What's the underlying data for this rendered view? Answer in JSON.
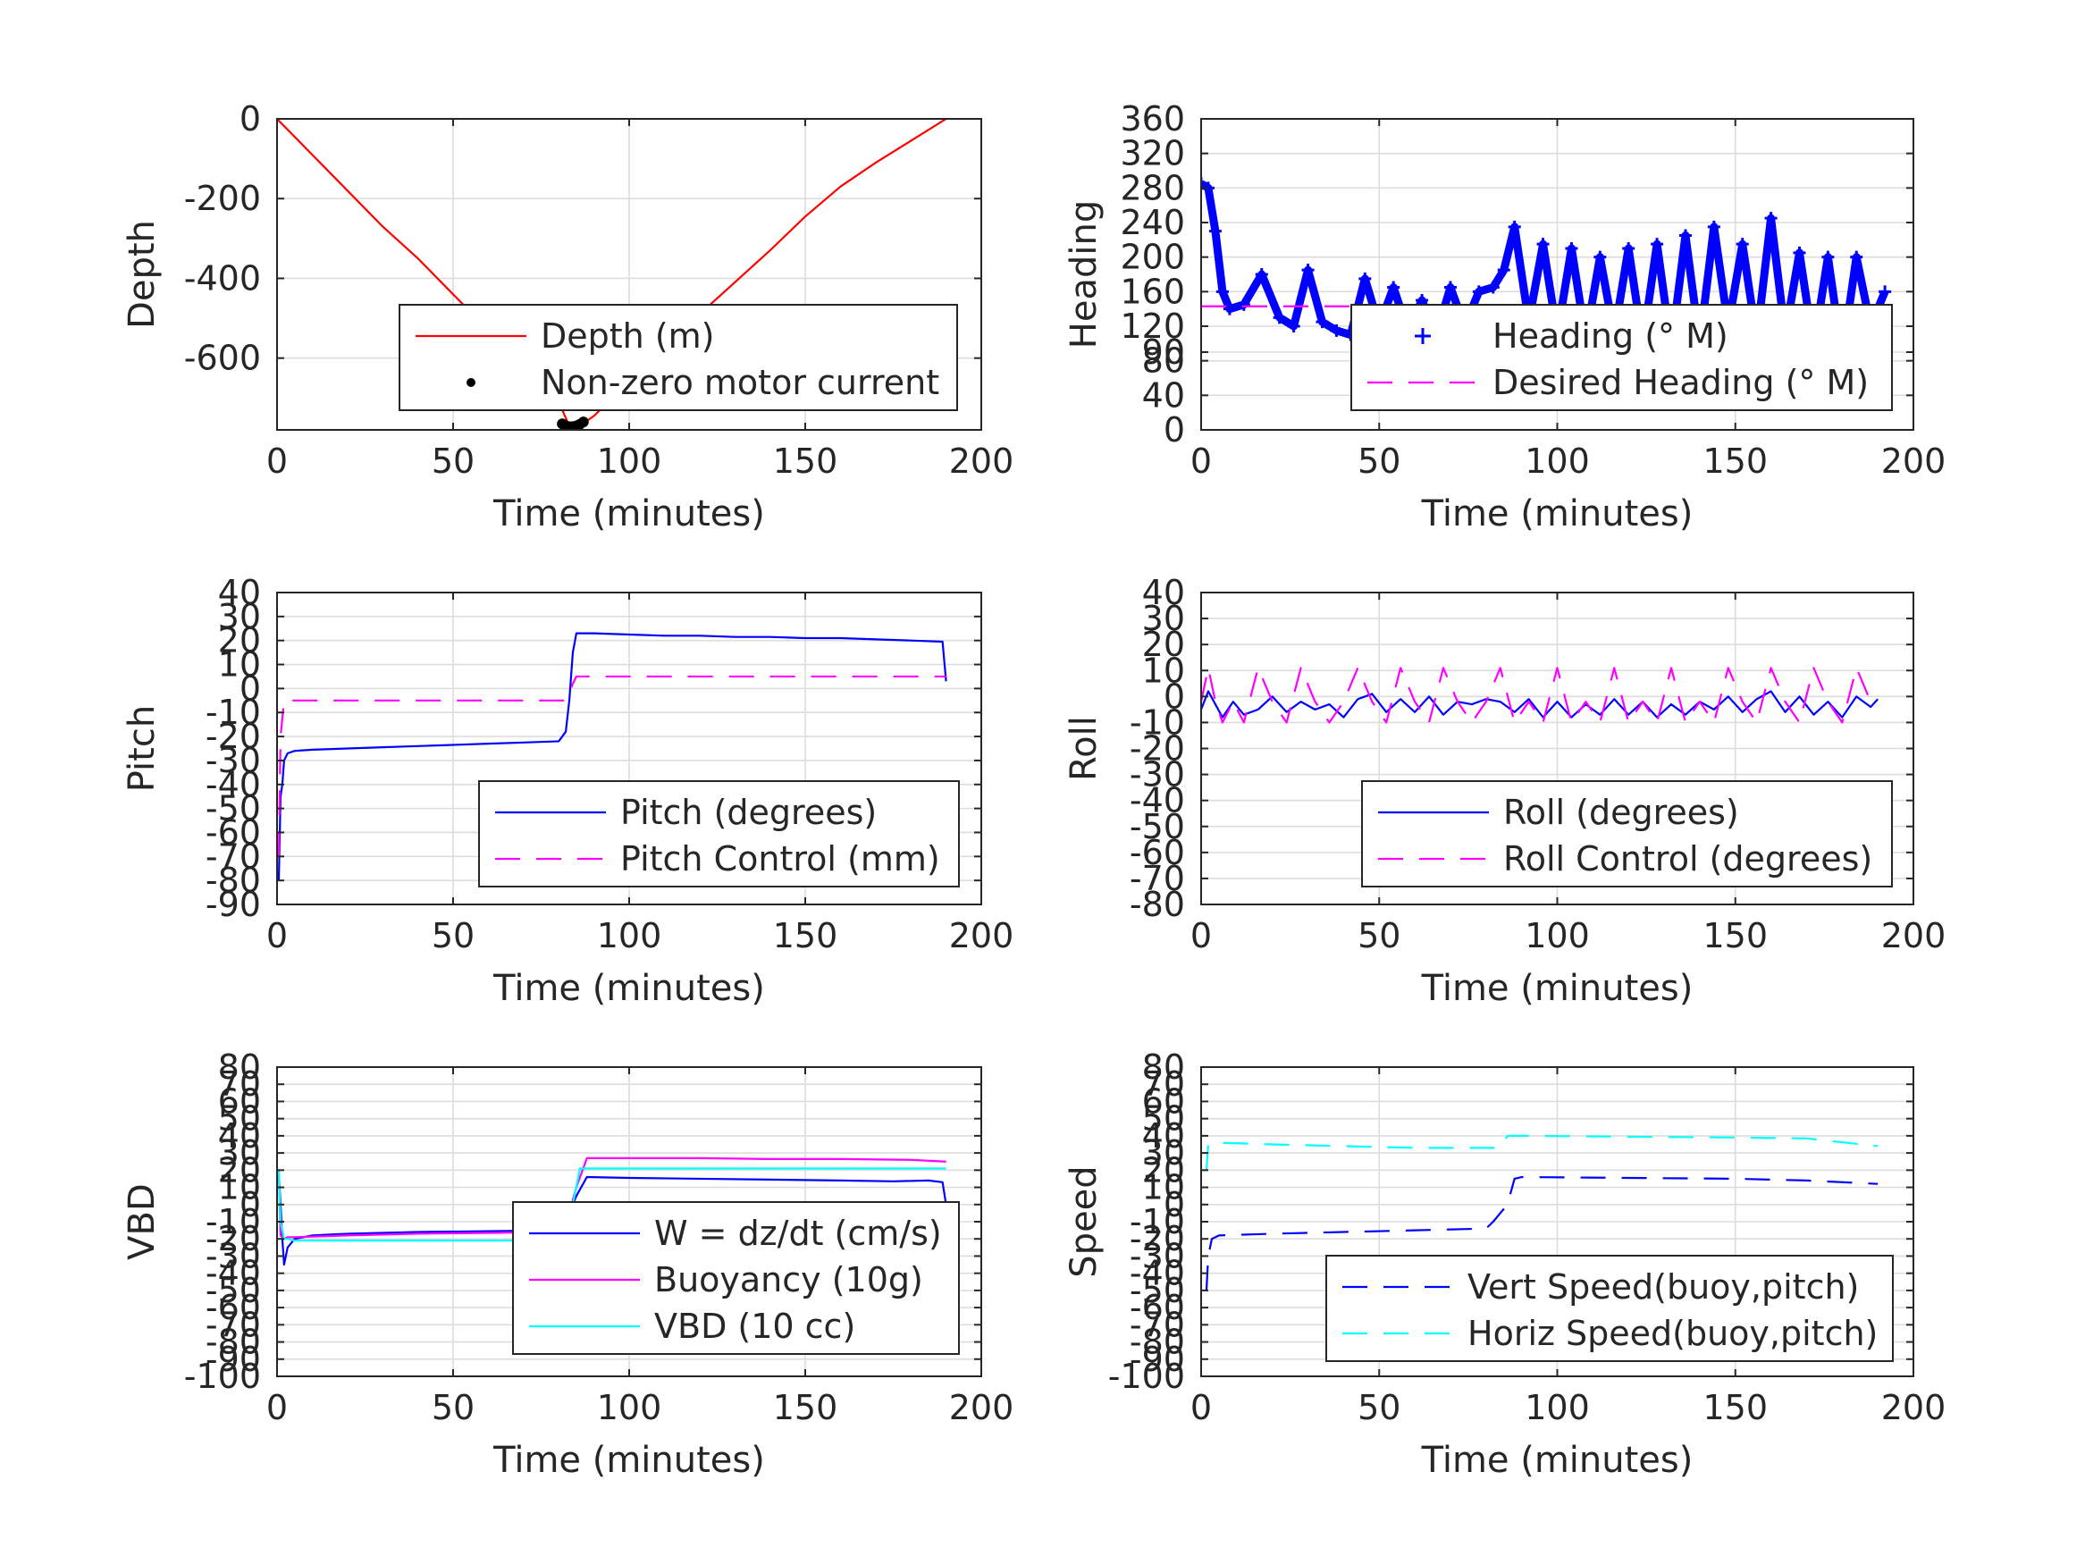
{
  "figure": {
    "xlabel_common": "Time (minutes)"
  },
  "chart_data": [
    {
      "type": "line",
      "id": "depth",
      "ylabel": "Depth",
      "xlabel": "Time (minutes)",
      "xlim": [
        0,
        200
      ],
      "ylim": [
        -780,
        0
      ],
      "xticks": [
        0,
        50,
        100,
        150,
        200
      ],
      "yticks": [
        -600,
        -400,
        -200,
        0
      ],
      "xtick_labels": [
        "0",
        "50",
        "100",
        "150",
        "200"
      ],
      "ytick_labels": [
        "-600",
        "-400",
        "-200",
        "0"
      ],
      "legend_location": "lower-right",
      "series": [
        {
          "name": "Depth (m)",
          "color": "#ff0000",
          "style": "solid",
          "x": [
            0,
            10,
            20,
            30,
            40,
            50,
            60,
            70,
            80,
            83,
            86,
            90,
            100,
            110,
            120,
            130,
            140,
            150,
            160,
            170,
            180,
            190
          ],
          "y": [
            0,
            -90,
            -180,
            -270,
            -350,
            -440,
            -530,
            -620,
            -710,
            -770,
            -770,
            -745,
            -660,
            -575,
            -490,
            -410,
            -330,
            -245,
            -170,
            -110,
            -55,
            0
          ]
        },
        {
          "name": "Non-zero motor current",
          "color": "#000000",
          "style": "dots",
          "x": [
            81,
            82,
            83,
            84,
            85,
            86,
            87
          ],
          "y": [
            -765,
            -770,
            -772,
            -772,
            -770,
            -766,
            -760
          ]
        }
      ]
    },
    {
      "type": "line",
      "id": "heading",
      "ylabel": "Heading",
      "xlabel": "Time (minutes)",
      "xlim": [
        0,
        200
      ],
      "ylim": [
        0,
        360
      ],
      "xticks": [
        0,
        50,
        100,
        150,
        200
      ],
      "yticks": [
        0,
        40,
        80,
        90,
        120,
        160,
        200,
        240,
        280,
        320,
        360
      ],
      "xtick_labels": [
        "0",
        "50",
        "100",
        "150",
        "200"
      ],
      "ytick_labels": [
        "0",
        "40",
        "80",
        "90",
        "120",
        "160",
        "200",
        "240",
        "280",
        "320",
        "360"
      ],
      "legend_location": "lower-right",
      "series": [
        {
          "name": "Heading (° M)",
          "color": "#0000ff",
          "style": "plus-markers",
          "x": [
            0,
            2,
            4,
            6,
            8,
            12,
            17,
            22,
            26,
            30,
            34,
            38,
            42,
            46,
            50,
            54,
            58,
            62,
            66,
            70,
            74,
            78,
            82,
            85,
            88,
            92,
            96,
            100,
            104,
            108,
            112,
            116,
            120,
            124,
            128,
            132,
            136,
            140,
            144,
            148,
            152,
            156,
            160,
            164,
            168,
            172,
            176,
            180,
            184,
            188,
            192
          ],
          "y": [
            285,
            280,
            230,
            160,
            140,
            145,
            180,
            130,
            120,
            185,
            125,
            115,
            110,
            175,
            120,
            165,
            115,
            150,
            110,
            165,
            120,
            160,
            165,
            185,
            235,
            125,
            215,
            110,
            210,
            105,
            200,
            110,
            210,
            100,
            215,
            95,
            225,
            100,
            235,
            120,
            215,
            105,
            245,
            110,
            205,
            95,
            200,
            85,
            200,
            120,
            160
          ]
        },
        {
          "name": "Desired Heading (° M)",
          "color": "#ff00ff",
          "style": "dashed",
          "x": [
            0,
            192
          ],
          "y": [
            143,
            143
          ]
        }
      ]
    },
    {
      "type": "line",
      "id": "pitch",
      "ylabel": "Pitch",
      "xlabel": "Time (minutes)",
      "xlim": [
        0,
        200
      ],
      "ylim": [
        -90,
        40
      ],
      "xticks": [
        0,
        50,
        100,
        150,
        200
      ],
      "yticks": [
        -90,
        -80,
        -70,
        -60,
        -50,
        -40,
        -30,
        -20,
        -10,
        0,
        10,
        20,
        30,
        40
      ],
      "xtick_labels": [
        "0",
        "50",
        "100",
        "150",
        "200"
      ],
      "ytick_labels": [
        "-90",
        "-80",
        "-70",
        "-60",
        "-50",
        "-40",
        "-30",
        "-20",
        "-10",
        "0",
        "10",
        "20",
        "30",
        "40"
      ],
      "legend_location": "lower-right",
      "series": [
        {
          "name": "Pitch (degrees)",
          "color": "#0000ff",
          "style": "solid",
          "x": [
            0.5,
            1,
            1.5,
            2,
            3,
            5,
            10,
            20,
            30,
            40,
            50,
            60,
            70,
            80,
            82,
            83,
            84,
            85,
            90,
            100,
            110,
            120,
            130,
            140,
            150,
            160,
            170,
            180,
            189,
            190
          ],
          "y": [
            -80,
            -45,
            -40,
            -30,
            -27,
            -26,
            -25.5,
            -25,
            -24.5,
            -24,
            -23.5,
            -23,
            -22.5,
            -22,
            -18,
            -5,
            15,
            23,
            23,
            22.5,
            22,
            22,
            21.5,
            21.5,
            21,
            21,
            20.5,
            20,
            19.5,
            3
          ]
        },
        {
          "name": "Pitch Control (mm)",
          "color": "#ff00ff",
          "style": "dashed",
          "x": [
            0.5,
            1,
            2,
            5,
            20,
            40,
            60,
            80,
            82,
            83,
            84,
            85,
            86,
            190
          ],
          "y": [
            -70,
            -20,
            -5,
            -5,
            -5,
            -5,
            -5,
            -5,
            -5,
            -2,
            2,
            5,
            5,
            5
          ]
        }
      ]
    },
    {
      "type": "line",
      "id": "roll",
      "ylabel": "Roll",
      "xlabel": "Time (minutes)",
      "xlim": [
        0,
        200
      ],
      "ylim": [
        -80,
        40
      ],
      "xticks": [
        0,
        50,
        100,
        150,
        200
      ],
      "yticks": [
        -80,
        -70,
        -60,
        -50,
        -40,
        -30,
        -20,
        -10,
        0,
        10,
        20,
        30,
        40
      ],
      "xtick_labels": [
        "0",
        "50",
        "100",
        "150",
        "200"
      ],
      "ytick_labels": [
        "-80",
        "-70",
        "-60",
        "-50",
        "-40",
        "-30",
        "-20",
        "-10",
        "0",
        "10",
        "20",
        "30",
        "40"
      ],
      "legend_location": "lower-right",
      "series": [
        {
          "name": "Roll (degrees)",
          "color": "#0000ff",
          "style": "solid",
          "x": [
            0,
            2,
            4,
            6,
            9,
            12,
            16,
            20,
            24,
            28,
            32,
            36,
            40,
            44,
            48,
            52,
            56,
            60,
            64,
            68,
            72,
            76,
            80,
            84,
            88,
            92,
            96,
            100,
            104,
            108,
            112,
            116,
            120,
            124,
            128,
            132,
            136,
            140,
            144,
            148,
            152,
            156,
            160,
            164,
            168,
            172,
            176,
            180,
            184,
            188,
            190
          ],
          "y": [
            -5,
            2,
            -3,
            -8,
            -2,
            -7,
            -5,
            0,
            -6,
            -2,
            -5,
            -3,
            -8,
            -1,
            1,
            -6,
            -1,
            -6,
            0,
            -7,
            -2,
            -3,
            -1,
            -2,
            -6,
            -1,
            -8,
            -2,
            -8,
            -3,
            -7,
            -1,
            -7,
            -2,
            -8,
            -3,
            -7,
            -2,
            -5,
            0,
            -6,
            -1,
            2,
            -6,
            0,
            -7,
            -2,
            -8,
            0,
            -4,
            -1
          ]
        },
        {
          "name": "Roll Control (degrees)",
          "color": "#ff00ff",
          "style": "dashed",
          "x": [
            0,
            2,
            4,
            6,
            9,
            12,
            16,
            20,
            24,
            28,
            32,
            36,
            40,
            44,
            48,
            52,
            56,
            60,
            64,
            68,
            72,
            76,
            80,
            84,
            88,
            92,
            96,
            100,
            104,
            108,
            112,
            116,
            120,
            124,
            128,
            132,
            136,
            140,
            144,
            148,
            152,
            156,
            160,
            164,
            168,
            172,
            176,
            180,
            184,
            188,
            190
          ],
          "y": [
            -2,
            11,
            -2,
            -10,
            -2,
            -10,
            11,
            -2,
            -10,
            11,
            -2,
            -10,
            -2,
            11,
            -2,
            -10,
            11,
            -2,
            -10,
            11,
            -2,
            -10,
            -2,
            11,
            -10,
            -2,
            -10,
            11,
            -10,
            -2,
            -10,
            11,
            -10,
            -2,
            -10,
            11,
            -10,
            -2,
            -10,
            11,
            -2,
            -10,
            11,
            -2,
            -10,
            11,
            -2,
            -10,
            11,
            -2,
            -2
          ]
        }
      ]
    },
    {
      "type": "line",
      "id": "vbd",
      "ylabel": "VBD",
      "xlabel": "Time (minutes)",
      "xlim": [
        0,
        200
      ],
      "ylim": [
        -100,
        80
      ],
      "xticks": [
        0,
        50,
        100,
        150,
        200
      ],
      "yticks": [
        -100,
        -90,
        -80,
        -70,
        -60,
        -50,
        -40,
        -30,
        -20,
        -10,
        0,
        10,
        20,
        30,
        40,
        50,
        60,
        70,
        80
      ],
      "xtick_labels": [
        "0",
        "50",
        "100",
        "150",
        "200"
      ],
      "ytick_labels": [
        "-100",
        "-90",
        "-80",
        "-70",
        "-60",
        "-50",
        "-40",
        "-30",
        "-20",
        "-10",
        "0",
        "10",
        "20",
        "30",
        "40",
        "50",
        "60",
        "70",
        "80"
      ],
      "legend_location": "lower-right",
      "series": [
        {
          "name": "W = dz/dt (cm/s)",
          "color": "#0000ff",
          "style": "solid",
          "x": [
            0.5,
            1,
            1.5,
            2,
            3,
            5,
            10,
            20,
            40,
            60,
            80,
            82,
            85,
            88,
            100,
            120,
            140,
            160,
            175,
            185,
            189,
            190
          ],
          "y": [
            18,
            0,
            -20,
            -35,
            -25,
            -20,
            -18,
            -17,
            -16,
            -15.5,
            -15,
            -10,
            5,
            16,
            15.5,
            15,
            14.5,
            14,
            13.5,
            14,
            13,
            0
          ]
        },
        {
          "name": "Buoyancy (10g)",
          "color": "#ff00ff",
          "style": "solid",
          "x": [
            0.5,
            1,
            2,
            3,
            5,
            20,
            40,
            60,
            80,
            82,
            85,
            88,
            100,
            120,
            140,
            160,
            180,
            190
          ],
          "y": [
            20,
            -18,
            -20,
            -19,
            -19,
            -18,
            -17,
            -16.5,
            -16,
            -12,
            10,
            27,
            27,
            27,
            26.5,
            26.5,
            26,
            25
          ]
        },
        {
          "name": "VBD (10 cc)",
          "color": "#00ffff",
          "style": "solid",
          "x": [
            0.5,
            1,
            2,
            3,
            5,
            20,
            40,
            60,
            80,
            82,
            84,
            86,
            90,
            120,
            150,
            190
          ],
          "y": [
            20,
            -10,
            -20,
            -20,
            -21,
            -21,
            -21,
            -21,
            -21,
            -21,
            0,
            21,
            21,
            21,
            21,
            21
          ]
        }
      ]
    },
    {
      "type": "line",
      "id": "speed",
      "ylabel": "Speed",
      "xlabel": "Time (minutes)",
      "xlim": [
        0,
        200
      ],
      "ylim": [
        -100,
        80
      ],
      "xticks": [
        0,
        50,
        100,
        150,
        200
      ],
      "yticks": [
        -100,
        -90,
        -80,
        -70,
        -60,
        -50,
        -40,
        -30,
        -20,
        -10,
        0,
        10,
        20,
        30,
        40,
        50,
        60,
        70,
        80
      ],
      "xtick_labels": [
        "0",
        "50",
        "100",
        "150",
        "200"
      ],
      "ytick_labels": [
        "-100",
        "-90",
        "-80",
        "-70",
        "-60",
        "-50",
        "-40",
        "-30",
        "-20",
        "-10",
        "0",
        "10",
        "20",
        "30",
        "40",
        "50",
        "60",
        "70",
        "80"
      ],
      "legend_location": "lower-right",
      "series": [
        {
          "name": "Vert Speed(buoy,pitch)",
          "color": "#0000ff",
          "style": "dashed",
          "x": [
            1.5,
            2,
            3,
            5,
            20,
            40,
            60,
            80,
            82,
            86,
            88,
            90,
            120,
            150,
            170,
            190
          ],
          "y": [
            -50,
            -30,
            -20,
            -18,
            -17,
            -16,
            -15,
            -14,
            -10,
            0,
            15,
            16,
            15.5,
            15,
            14,
            12
          ]
        },
        {
          "name": "Horiz Speed(buoy,pitch)",
          "color": "#00ffff",
          "style": "dashed",
          "x": [
            1.5,
            2,
            3,
            5,
            20,
            40,
            60,
            80,
            84,
            86,
            90,
            120,
            150,
            170,
            190
          ],
          "y": [
            20,
            35,
            36,
            36,
            35,
            34,
            33,
            33,
            33,
            40,
            40,
            39.5,
            39,
            38.5,
            34
          ]
        }
      ]
    }
  ]
}
